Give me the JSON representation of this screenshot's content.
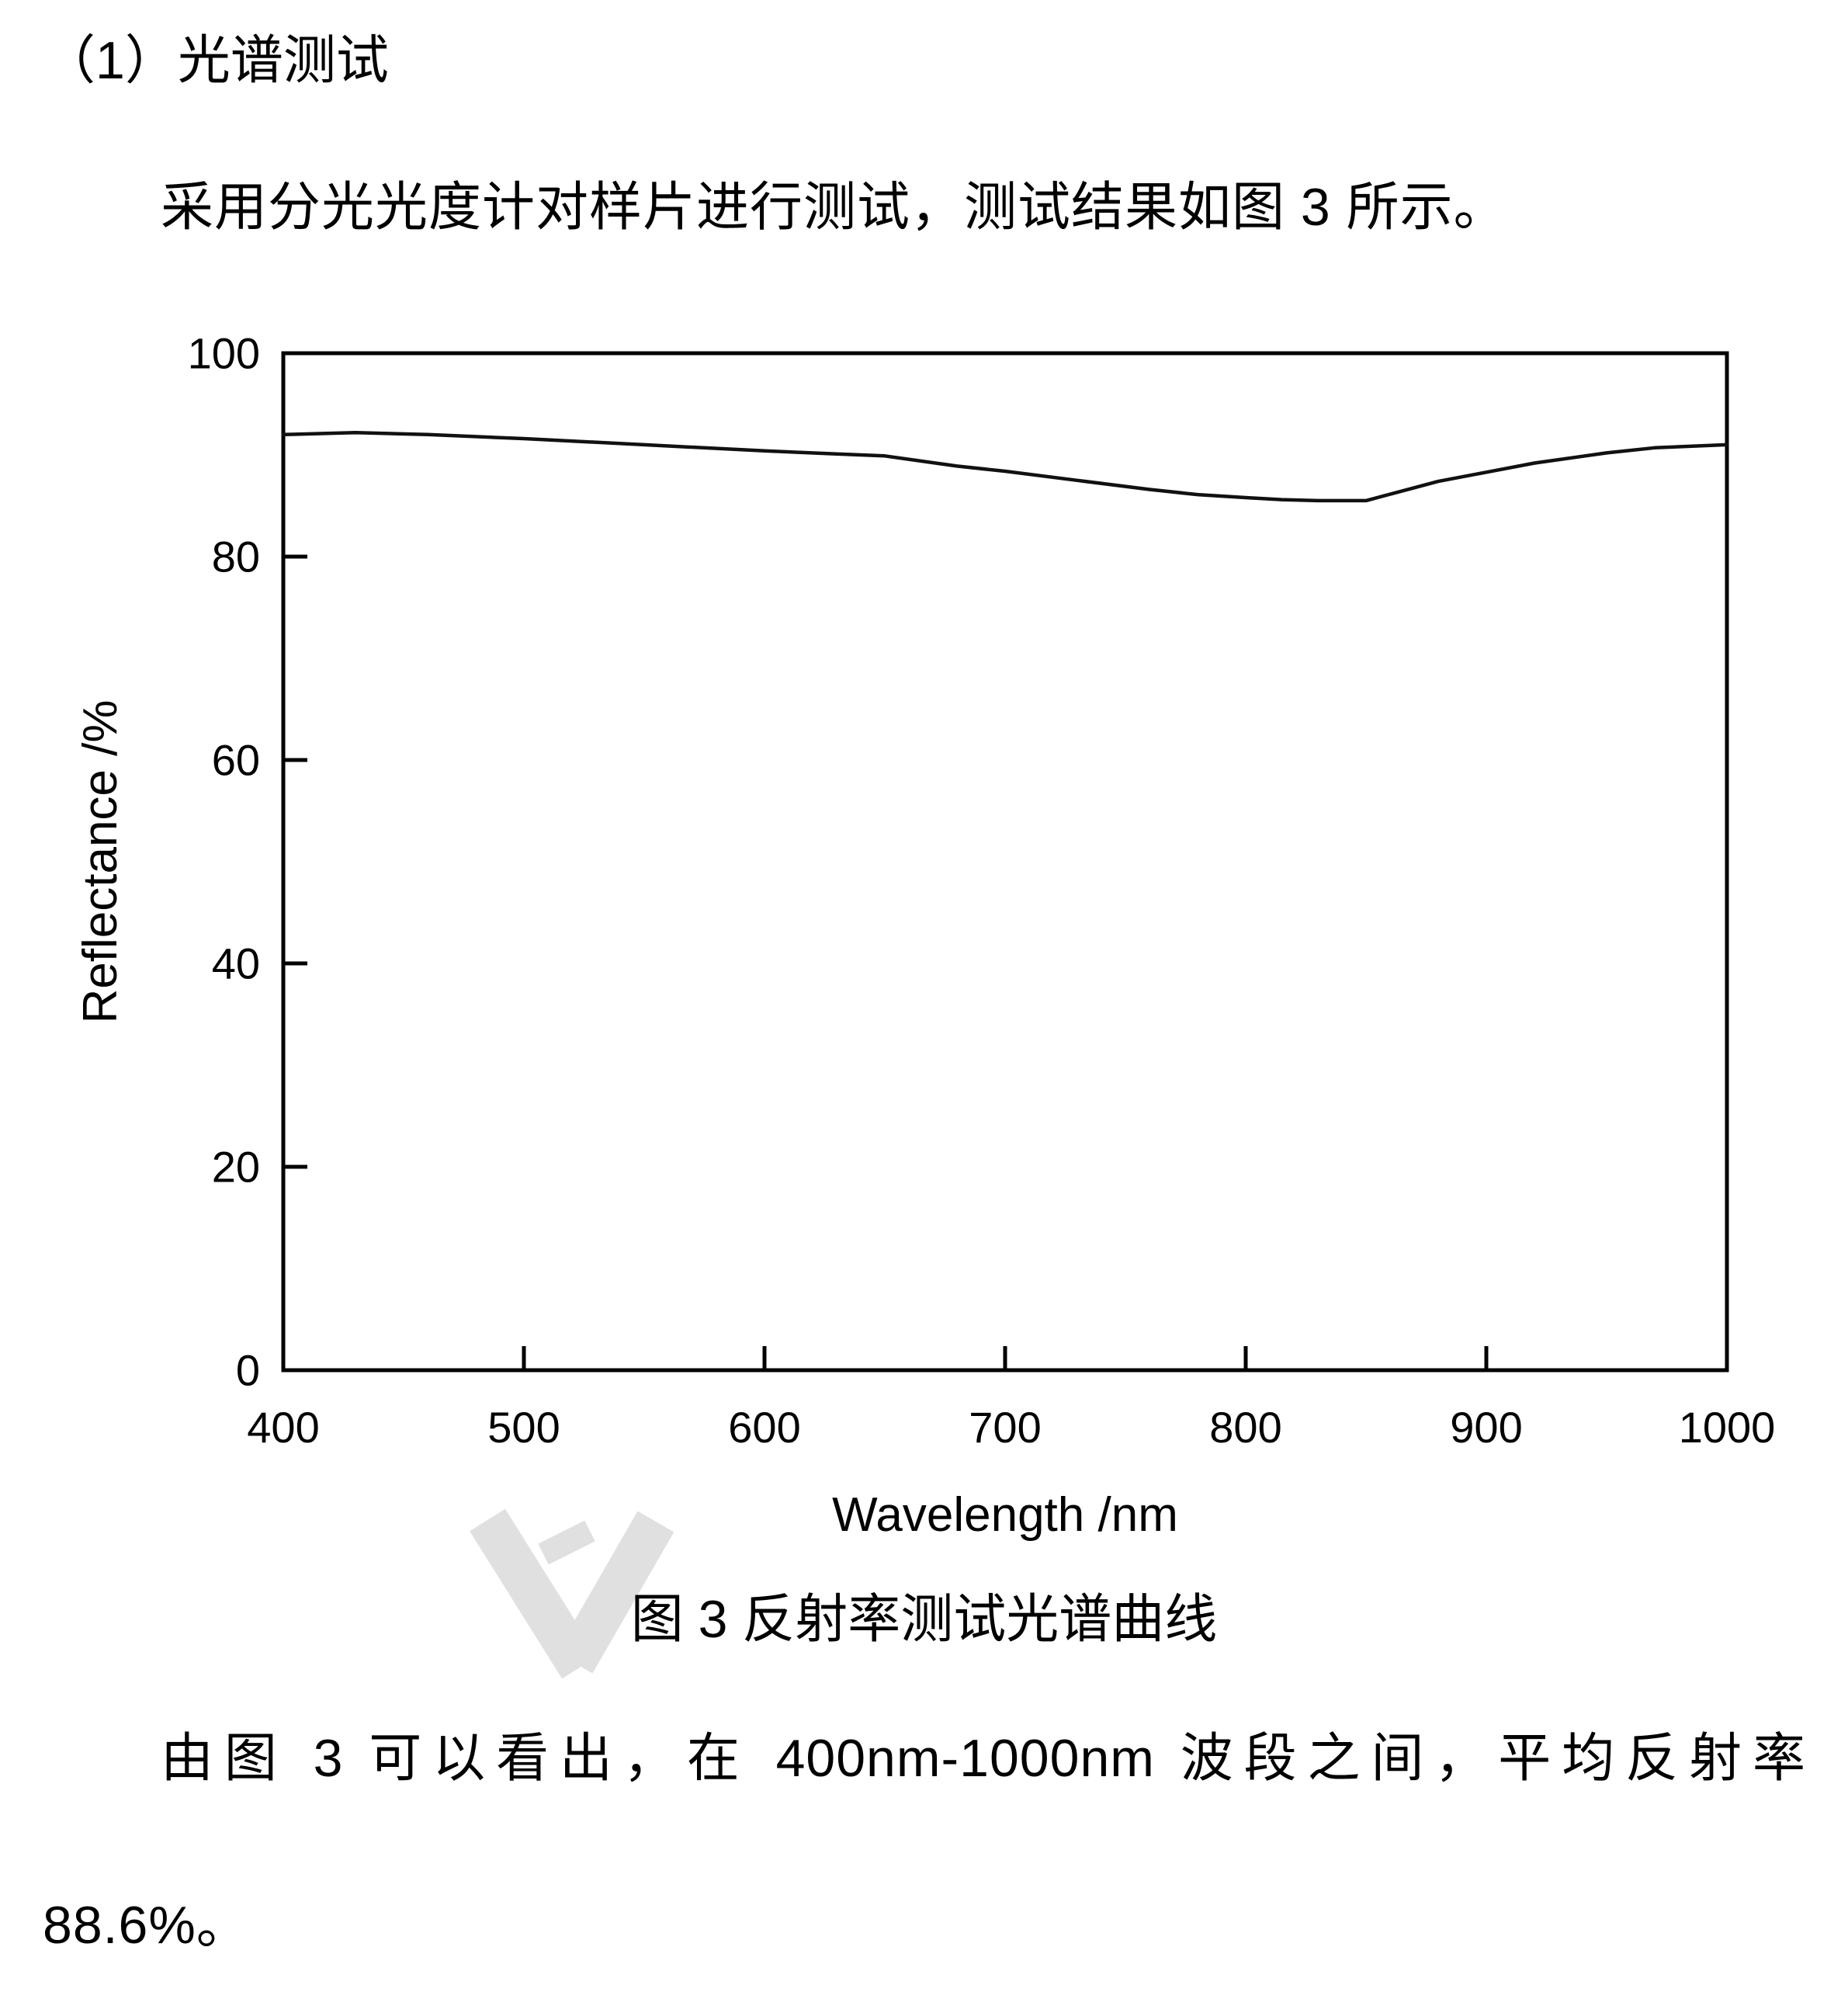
{
  "document": {
    "heading": "（1）光谱测试",
    "para1": "采用分光光度计对样片进行测试，测试结果如图 3 所示。",
    "figure_caption": "图 3 反射率测试光谱曲线",
    "para2": "由图 3 可以看出，在 400nm-1000nm 波段之间，平均反射率 88.6%。"
  },
  "figure": {
    "watermark_icon": "checkmark-logo-watermark",
    "watermark_color": "#e0e0e0",
    "axis_color": "#000000",
    "curve_color": "#111111"
  },
  "chart_data": {
    "type": "line",
    "title": "图 3 反射率测试光谱曲线",
    "xlabel": "Wavelength /nm",
    "ylabel": "Reflectance /%",
    "xlim": [
      400,
      1000
    ],
    "ylim": [
      0,
      100
    ],
    "x_ticks": [
      400,
      500,
      600,
      700,
      800,
      900,
      1000
    ],
    "y_ticks": [
      0,
      20,
      40,
      60,
      80,
      100
    ],
    "grid": false,
    "legend": "none",
    "series": [
      {
        "name": "reflectance",
        "x": [
          400,
          430,
          460,
          500,
          550,
          600,
          630,
          650,
          680,
          700,
          730,
          760,
          780,
          800,
          815,
          830,
          850,
          880,
          900,
          920,
          950,
          970,
          1000
        ],
        "y": [
          92.0,
          92.2,
          92.0,
          91.6,
          91.0,
          90.4,
          90.1,
          89.9,
          88.9,
          88.4,
          87.5,
          86.6,
          86.1,
          85.8,
          85.6,
          85.5,
          85.5,
          87.4,
          88.3,
          89.2,
          90.2,
          90.7,
          91.0
        ]
      }
    ],
    "mean_reflectance_note": "平均反射率 88.6%（400nm-1000nm）"
  }
}
